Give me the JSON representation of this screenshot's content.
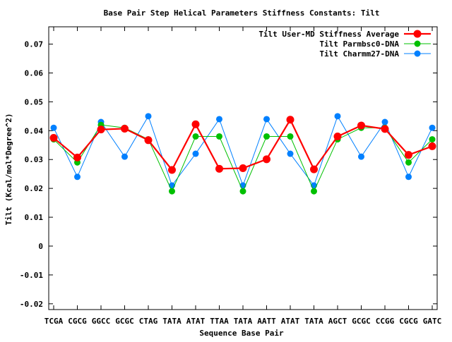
{
  "chart_data": {
    "type": "line",
    "title": "Base Pair Step Helical Parameters Stiffness Constants: Tilt",
    "xlabel": "Sequence Base Pair",
    "ylabel": "Tilt (Kcal/mol*Degree^2)",
    "ylim": [
      -0.022,
      0.076
    ],
    "yticks": [
      -0.02,
      -0.01,
      0,
      0.01,
      0.02,
      0.03,
      0.04,
      0.05,
      0.06,
      0.07
    ],
    "ytick_labels": [
      "-0.02",
      "-0.01",
      "0",
      "0.01",
      "0.02",
      "0.03",
      "0.04",
      "0.05",
      "0.06",
      "0.07"
    ],
    "categories": [
      "TCGA",
      "CGCG",
      "GGCC",
      "GCGC",
      "CTAG",
      "TATA",
      "ATAT",
      "TTAA",
      "TATA",
      "AATT",
      "ATAT",
      "TATA",
      "AGCT",
      "GCGC",
      "CCGG",
      "CGCG",
      "GATC"
    ],
    "grid": false,
    "legend_position": "top-right",
    "series": [
      {
        "name": "Tilt User-MD Stiffness Average",
        "color": "#ff0000",
        "values": [
          0.0375,
          0.0307,
          0.0404,
          0.0407,
          0.0367,
          0.0264,
          0.0422,
          0.0268,
          0.027,
          0.0301,
          0.0438,
          0.0266,
          0.038,
          0.0418,
          0.0406,
          0.0316,
          0.0346
        ]
      },
      {
        "name": "Tilt Parmbsc0-DNA",
        "color": "#00c000",
        "values": [
          0.037,
          0.029,
          0.042,
          0.041,
          0.037,
          0.019,
          0.038,
          0.038,
          0.019,
          0.038,
          0.038,
          0.019,
          0.037,
          0.041,
          0.041,
          0.029,
          0.037
        ]
      },
      {
        "name": "Tilt Charmm27-DNA",
        "color": "#0080ff",
        "values": [
          0.041,
          0.024,
          0.043,
          0.031,
          0.045,
          0.021,
          0.032,
          0.044,
          0.021,
          0.044,
          0.032,
          0.021,
          0.045,
          0.031,
          0.043,
          0.024,
          0.041
        ]
      }
    ]
  }
}
